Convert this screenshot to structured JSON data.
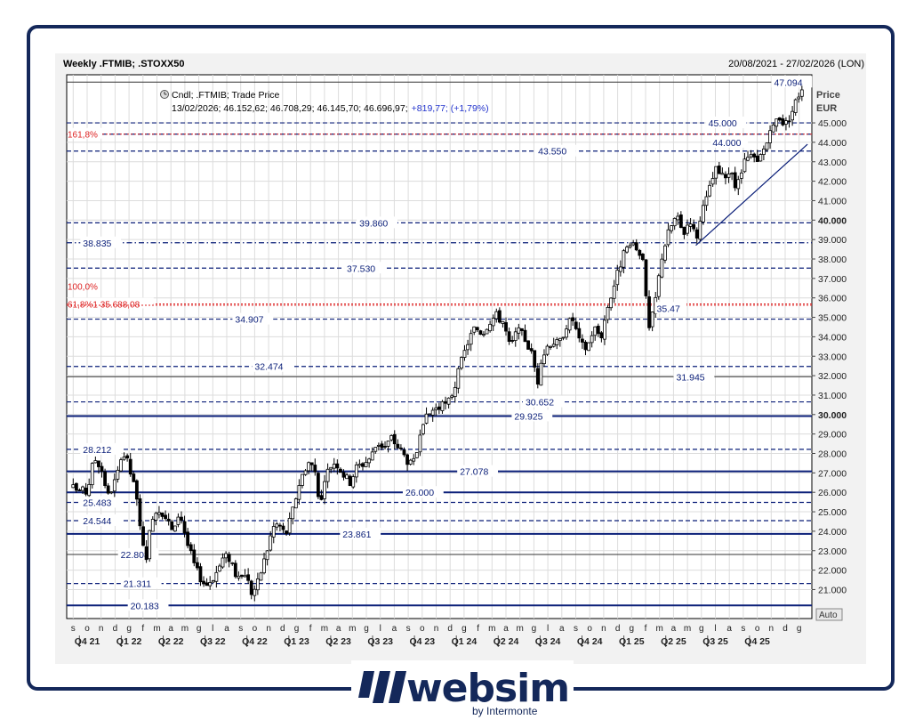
{
  "header": {
    "title": "Weekly .FTMIB; .STOXX50",
    "date_range": "20/08/2021 - 27/02/2026 (LON)"
  },
  "legend": {
    "line1": "Cndl; .FTMIB; Trade Price",
    "line2_prefix": "13/02/2026; 46.152,62; 46.708,29; 46.145,70; 46.696,97;",
    "line2_change": "+819,77; (+1,79%)"
  },
  "axis": {
    "title": "Price",
    "unit": "EUR",
    "auto_label": "Auto"
  },
  "brand": {
    "name": "websim",
    "tagline": "by Intermonte",
    "color": "#14285a"
  },
  "colors": {
    "navy": "#14285a",
    "level_blue": "#0a1e78",
    "fib_red": "#dd2222",
    "grid": "#dcdcdc"
  },
  "chart_data": {
    "type": "candlestick",
    "title": "Weekly .FTMIB; .STOXX50",
    "ylabel": "Price EUR",
    "ylim": [
      20000,
      48000
    ],
    "y_ticks": [
      {
        "value": 21000,
        "label": "21.000",
        "bold": false
      },
      {
        "value": 22000,
        "label": "22.000",
        "bold": false
      },
      {
        "value": 23000,
        "label": "23.000",
        "bold": false
      },
      {
        "value": 24000,
        "label": "24.000",
        "bold": false
      },
      {
        "value": 25000,
        "label": "25.000",
        "bold": false
      },
      {
        "value": 26000,
        "label": "26.000",
        "bold": false
      },
      {
        "value": 27000,
        "label": "27.000",
        "bold": false
      },
      {
        "value": 28000,
        "label": "28.000",
        "bold": false
      },
      {
        "value": 29000,
        "label": "29.000",
        "bold": false
      },
      {
        "value": 30000,
        "label": "30.000",
        "bold": true
      },
      {
        "value": 31000,
        "label": "31.000",
        "bold": false
      },
      {
        "value": 32000,
        "label": "32.000",
        "bold": false
      },
      {
        "value": 33000,
        "label": "33.000",
        "bold": false
      },
      {
        "value": 34000,
        "label": "34.000",
        "bold": false
      },
      {
        "value": 35000,
        "label": "35.000",
        "bold": false
      },
      {
        "value": 36000,
        "label": "36.000",
        "bold": false
      },
      {
        "value": 37000,
        "label": "37.000",
        "bold": false
      },
      {
        "value": 38000,
        "label": "38.000",
        "bold": false
      },
      {
        "value": 39000,
        "label": "39.000",
        "bold": false
      },
      {
        "value": 40000,
        "label": "40.000",
        "bold": true
      },
      {
        "value": 41000,
        "label": "41.000",
        "bold": false
      },
      {
        "value": 42000,
        "label": "42.000",
        "bold": false
      },
      {
        "value": 43000,
        "label": "43.000",
        "bold": false
      },
      {
        "value": 44000,
        "label": "44.000",
        "bold": false
      },
      {
        "value": 45000,
        "label": "45.000",
        "bold": false
      }
    ],
    "month_labels": [
      "s",
      "o",
      "n",
      "d",
      "g",
      "f",
      "m",
      "a",
      "m",
      "g",
      "l",
      "a",
      "s",
      "o",
      "n",
      "d",
      "g",
      "f",
      "m",
      "a",
      "m",
      "g",
      "l",
      "a",
      "s",
      "o",
      "n",
      "d",
      "g",
      "f",
      "m",
      "a",
      "m",
      "g",
      "l",
      "a",
      "s",
      "o",
      "n",
      "d",
      "g",
      "f",
      "m",
      "a",
      "m",
      "g",
      "l",
      "a",
      "s",
      "o",
      "n",
      "d",
      "g",
      "f",
      "m",
      "a",
      "m",
      "g",
      "l",
      "a",
      "s",
      "o",
      "n",
      "d",
      "g",
      "f"
    ],
    "quarter_labels": [
      {
        "label": "Q4 21",
        "month_index": 1
      },
      {
        "label": "Q1 22",
        "month_index": 4
      },
      {
        "label": "Q2 22",
        "month_index": 7
      },
      {
        "label": "Q3 22",
        "month_index": 10
      },
      {
        "label": "Q4 22",
        "month_index": 13
      },
      {
        "label": "Q1 23",
        "month_index": 16
      },
      {
        "label": "Q2 23",
        "month_index": 19
      },
      {
        "label": "Q3 23",
        "month_index": 22
      },
      {
        "label": "Q4 23",
        "month_index": 25
      },
      {
        "label": "Q1 24",
        "month_index": 28
      },
      {
        "label": "Q2 24",
        "month_index": 31
      },
      {
        "label": "Q3 24",
        "month_index": 34
      },
      {
        "label": "Q4 24",
        "month_index": 37
      },
      {
        "label": "Q1 25",
        "month_index": 40
      },
      {
        "label": "Q2 25",
        "month_index": 43
      },
      {
        "label": "Q3 25",
        "month_index": 46
      },
      {
        "label": "Q4 25",
        "month_index": 49
      }
    ],
    "levels": [
      {
        "value": 47094,
        "label": "47.094",
        "style": "solid",
        "label_month": 50.2
      },
      {
        "value": 45000,
        "label": "45.000",
        "style": "dashed",
        "label_month": 45.5
      },
      {
        "value": 44420,
        "label": "",
        "style": "dashed",
        "label_month": 0
      },
      {
        "value": 43550,
        "label": "43.550",
        "style": "dashed",
        "label_month": 33.3
      },
      {
        "value": 39860,
        "label": "39.860",
        "style": "dashed",
        "label_month": 20.5
      },
      {
        "value": 38835,
        "label": "38.835",
        "style": "dashdot",
        "label_month": 0.7
      },
      {
        "value": 37530,
        "label": "37.530",
        "style": "dashed",
        "label_month": 19.6
      },
      {
        "value": 34907,
        "label": "34.907",
        "style": "dashed",
        "label_month": 11.6
      },
      {
        "value": 32474,
        "label": "32.474",
        "style": "dashed",
        "label_month": 13
      },
      {
        "value": 31945,
        "label": "31.945",
        "style": "thin",
        "label_month": 43.2
      },
      {
        "value": 30652,
        "label": "30.652",
        "style": "dashed",
        "label_month": 32.4
      },
      {
        "value": 29925,
        "label": "29.925",
        "style": "bold",
        "label_month": 31.6
      },
      {
        "value": 28212,
        "label": "28.212",
        "style": "dashed",
        "label_month": 0.7
      },
      {
        "value": 27078,
        "label": "27.078",
        "style": "bold",
        "label_month": 27.7
      },
      {
        "value": 26000,
        "label": "26.000",
        "style": "bold",
        "label_month": 23.8
      },
      {
        "value": 25483,
        "label": "25.483",
        "style": "dashed",
        "label_month": 0.7
      },
      {
        "value": 24544,
        "label": "24.544",
        "style": "dashed",
        "label_month": 0.7
      },
      {
        "value": 23861,
        "label": "23.861",
        "style": "bold",
        "label_month": 19.3
      },
      {
        "value": 22808,
        "label": "22.808",
        "style": "thin",
        "label_month": 3.4
      },
      {
        "value": 21311,
        "label": "21.311",
        "style": "dashed",
        "label_month": 3.6
      },
      {
        "value": 20183,
        "label": "20.183",
        "style": "bold",
        "label_month": 4.1
      }
    ],
    "fib_levels": [
      {
        "value": 44420,
        "label": "161,8%"
      },
      {
        "value": 35688,
        "label": "61,8%1 35.688,08"
      },
      {
        "value": 35620,
        "label": ""
      }
    ],
    "fib_texts": [
      {
        "value": 36600,
        "label": "100,0%"
      }
    ],
    "extra_labels": [
      {
        "value": 44000,
        "label": "44.000",
        "label_month": 45.8
      },
      {
        "value": 35470,
        "label": "35.47",
        "label_month": 41.8
      }
    ],
    "trendline": {
      "start": {
        "month": 44.6,
        "value": 38700
      },
      "end": {
        "month": 52.6,
        "value": 43900
      }
    },
    "anchors": [
      {
        "m": 0,
        "c": 26200
      },
      {
        "m": 1,
        "c": 26000
      },
      {
        "m": 1.5,
        "c": 27800
      },
      {
        "m": 2,
        "c": 27300
      },
      {
        "m": 2.5,
        "c": 25800
      },
      {
        "m": 3,
        "c": 26600
      },
      {
        "m": 3.7,
        "c": 28000
      },
      {
        "m": 4.3,
        "c": 26500
      },
      {
        "m": 4.7,
        "c": 25000
      },
      {
        "m": 5.2,
        "c": 22000
      },
      {
        "m": 5.6,
        "c": 24800
      },
      {
        "m": 6.2,
        "c": 25200
      },
      {
        "m": 6.8,
        "c": 24500
      },
      {
        "m": 7.2,
        "c": 23800
      },
      {
        "m": 7.6,
        "c": 25100
      },
      {
        "m": 8.2,
        "c": 23300
      },
      {
        "m": 8.8,
        "c": 22000
      },
      {
        "m": 9.5,
        "c": 21200
      },
      {
        "m": 10.2,
        "c": 21800
      },
      {
        "m": 10.8,
        "c": 22700
      },
      {
        "m": 11.3,
        "c": 22600
      },
      {
        "m": 11.8,
        "c": 21400
      },
      {
        "m": 12.3,
        "c": 21900
      },
      {
        "m": 12.8,
        "c": 20800
      },
      {
        "m": 13.2,
        "c": 21300
      },
      {
        "m": 13.8,
        "c": 22800
      },
      {
        "m": 14.3,
        "c": 24200
      },
      {
        "m": 14.7,
        "c": 24400
      },
      {
        "m": 15.2,
        "c": 23800
      },
      {
        "m": 15.6,
        "c": 24700
      },
      {
        "m": 16.2,
        "c": 26500
      },
      {
        "m": 16.8,
        "c": 27600
      },
      {
        "m": 17.3,
        "c": 27200
      },
      {
        "m": 17.7,
        "c": 25300
      },
      {
        "m": 18.3,
        "c": 27300
      },
      {
        "m": 18.8,
        "c": 27600
      },
      {
        "m": 19.3,
        "c": 27000
      },
      {
        "m": 19.8,
        "c": 26500
      },
      {
        "m": 20.3,
        "c": 27300
      },
      {
        "m": 20.8,
        "c": 27500
      },
      {
        "m": 21.3,
        "c": 27800
      },
      {
        "m": 21.8,
        "c": 28600
      },
      {
        "m": 22.3,
        "c": 28300
      },
      {
        "m": 22.8,
        "c": 28800
      },
      {
        "m": 23.3,
        "c": 28300
      },
      {
        "m": 23.8,
        "c": 27800
      },
      {
        "m": 24.3,
        "c": 27300
      },
      {
        "m": 24.8,
        "c": 28600
      },
      {
        "m": 25.3,
        "c": 29800
      },
      {
        "m": 25.8,
        "c": 30300
      },
      {
        "m": 26.3,
        "c": 30400
      },
      {
        "m": 26.8,
        "c": 30500
      },
      {
        "m": 27.3,
        "c": 31400
      },
      {
        "m": 27.8,
        "c": 32700
      },
      {
        "m": 28.3,
        "c": 33800
      },
      {
        "m": 28.8,
        "c": 34500
      },
      {
        "m": 29.3,
        "c": 34200
      },
      {
        "m": 29.8,
        "c": 34800
      },
      {
        "m": 30.3,
        "c": 35100
      },
      {
        "m": 30.8,
        "c": 34800
      },
      {
        "m": 31.3,
        "c": 33400
      },
      {
        "m": 31.8,
        "c": 34300
      },
      {
        "m": 32.3,
        "c": 34000
      },
      {
        "m": 32.8,
        "c": 33200
      },
      {
        "m": 33.3,
        "c": 31700
      },
      {
        "m": 33.8,
        "c": 33400
      },
      {
        "m": 34.3,
        "c": 33800
      },
      {
        "m": 34.8,
        "c": 33600
      },
      {
        "m": 35.3,
        "c": 34600
      },
      {
        "m": 35.8,
        "c": 34900
      },
      {
        "m": 36.3,
        "c": 33600
      },
      {
        "m": 36.8,
        "c": 33400
      },
      {
        "m": 37.3,
        "c": 34500
      },
      {
        "m": 37.8,
        "c": 34000
      },
      {
        "m": 38.3,
        "c": 35600
      },
      {
        "m": 38.8,
        "c": 36800
      },
      {
        "m": 39.3,
        "c": 38000
      },
      {
        "m": 39.8,
        "c": 38700
      },
      {
        "m": 40.3,
        "c": 38500
      },
      {
        "m": 40.8,
        "c": 38200
      },
      {
        "m": 41.2,
        "c": 34200
      },
      {
        "m": 41.6,
        "c": 35400
      },
      {
        "m": 42.2,
        "c": 38300
      },
      {
        "m": 42.7,
        "c": 39500
      },
      {
        "m": 43.2,
        "c": 40200
      },
      {
        "m": 43.7,
        "c": 39300
      },
      {
        "m": 44.2,
        "c": 40100
      },
      {
        "m": 44.6,
        "c": 39000
      },
      {
        "m": 45.0,
        "c": 40200
      },
      {
        "m": 45.5,
        "c": 41400
      },
      {
        "m": 46.0,
        "c": 42600
      },
      {
        "m": 46.5,
        "c": 42200
      },
      {
        "m": 47.0,
        "c": 42500
      },
      {
        "m": 47.5,
        "c": 41600
      },
      {
        "m": 48.0,
        "c": 42800
      },
      {
        "m": 48.5,
        "c": 43300
      },
      {
        "m": 49.0,
        "c": 42900
      },
      {
        "m": 49.5,
        "c": 43700
      },
      {
        "m": 50.0,
        "c": 44500
      },
      {
        "m": 50.5,
        "c": 45400
      },
      {
        "m": 51.0,
        "c": 44900
      },
      {
        "m": 51.5,
        "c": 45600
      },
      {
        "m": 51.9,
        "c": 46400
      },
      {
        "m": 52.2,
        "c": 46700
      }
    ]
  }
}
